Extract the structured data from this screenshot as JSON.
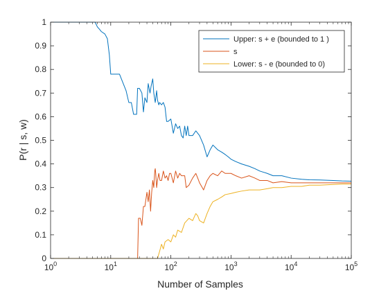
{
  "chart_data": {
    "type": "line",
    "title": "",
    "xlabel": "Number of Samples",
    "ylabel": "P(r | s, w)",
    "xscale": "log",
    "xlim": [
      1,
      100000
    ],
    "ylim": [
      0,
      1
    ],
    "xticks": [
      1,
      10,
      100,
      1000,
      10000,
      100000
    ],
    "xtick_labels": [
      {
        "base": "10",
        "exp": "0"
      },
      {
        "base": "10",
        "exp": "1"
      },
      {
        "base": "10",
        "exp": "2"
      },
      {
        "base": "10",
        "exp": "3"
      },
      {
        "base": "10",
        "exp": "4"
      },
      {
        "base": "10",
        "exp": "5"
      }
    ],
    "yticks": [
      0,
      0.1,
      0.2,
      0.3,
      0.4,
      0.5,
      0.6,
      0.7,
      0.8,
      0.9,
      1
    ],
    "ytick_labels": [
      "0",
      "0.1",
      "0.2",
      "0.3",
      "0.4",
      "0.5",
      "0.6",
      "0.7",
      "0.8",
      "0.9",
      "1"
    ],
    "grid": false,
    "legend": "top-right",
    "series": [
      {
        "name": "Upper: s + e (bounded to 1 )",
        "color": "#0072BD",
        "x": [
          1,
          5.5,
          6,
          6.5,
          7,
          8,
          8.8,
          9.5,
          10,
          14,
          18,
          20,
          22,
          24,
          25,
          27,
          28,
          30,
          33,
          35,
          37,
          40,
          42,
          45,
          47,
          50,
          52,
          55,
          58,
          60,
          63,
          65,
          70,
          75,
          80,
          85,
          90,
          100,
          110,
          120,
          130,
          140,
          150,
          160,
          170,
          180,
          190,
          200,
          230,
          260,
          300,
          350,
          400,
          450,
          500,
          600,
          700,
          800,
          900,
          1000,
          1200,
          1500,
          2000,
          2500,
          3000,
          4000,
          5000,
          7000,
          10000,
          15000,
          20000,
          30000,
          50000,
          70000,
          100000
        ],
        "y": [
          1,
          1,
          0.98,
          0.97,
          0.96,
          0.95,
          0.93,
          0.86,
          0.78,
          0.78,
          0.71,
          0.66,
          0.66,
          0.61,
          0.61,
          0.61,
          0.72,
          0.72,
          0.7,
          0.62,
          0.68,
          0.66,
          0.74,
          0.7,
          0.73,
          0.76,
          0.7,
          0.66,
          0.71,
          0.67,
          0.65,
          0.66,
          0.65,
          0.66,
          0.64,
          0.58,
          0.58,
          0.59,
          0.53,
          0.57,
          0.55,
          0.56,
          0.52,
          0.51,
          0.56,
          0.52,
          0.56,
          0.52,
          0.52,
          0.54,
          0.52,
          0.48,
          0.43,
          0.46,
          0.48,
          0.46,
          0.45,
          0.44,
          0.43,
          0.42,
          0.41,
          0.4,
          0.39,
          0.38,
          0.37,
          0.36,
          0.35,
          0.35,
          0.34,
          0.335,
          0.333,
          0.332,
          0.33,
          0.328,
          0.327
        ]
      },
      {
        "name": "s",
        "color": "#D95319",
        "x": [
          1,
          28,
          29,
          31,
          33,
          35,
          37,
          40,
          42,
          44,
          46,
          48,
          50,
          52,
          54,
          55,
          56,
          58,
          60,
          63,
          66,
          70,
          75,
          80,
          85,
          90,
          95,
          100,
          110,
          120,
          130,
          140,
          150,
          170,
          180,
          200,
          230,
          260,
          280,
          300,
          350,
          400,
          450,
          500,
          600,
          700,
          800,
          1000,
          1200,
          1500,
          2000,
          2500,
          3000,
          4000,
          5000,
          7000,
          10000,
          15000,
          20000,
          30000,
          50000,
          70000,
          100000
        ],
        "y": [
          0,
          0,
          0.17,
          0.17,
          0.14,
          0.22,
          0.22,
          0.28,
          0.24,
          0.29,
          0.2,
          0.28,
          0.33,
          0.3,
          0.37,
          0.38,
          0.36,
          0.3,
          0.33,
          0.36,
          0.33,
          0.33,
          0.37,
          0.34,
          0.35,
          0.33,
          0.36,
          0.36,
          0.32,
          0.37,
          0.34,
          0.36,
          0.35,
          0.35,
          0.3,
          0.31,
          0.34,
          0.36,
          0.34,
          0.32,
          0.29,
          0.33,
          0.35,
          0.36,
          0.35,
          0.37,
          0.36,
          0.36,
          0.35,
          0.34,
          0.35,
          0.34,
          0.33,
          0.33,
          0.32,
          0.325,
          0.32,
          0.32,
          0.32,
          0.32,
          0.32,
          0.32,
          0.32
        ]
      },
      {
        "name": "Lower: s - e (bounded to 0)",
        "color": "#EDB120",
        "x": [
          1,
          60,
          65,
          70,
          75,
          80,
          90,
          100,
          110,
          120,
          130,
          150,
          170,
          200,
          230,
          260,
          280,
          300,
          350,
          400,
          450,
          500,
          600,
          700,
          800,
          1000,
          1200,
          1500,
          2000,
          2500,
          3000,
          4000,
          5000,
          7000,
          10000,
          15000,
          20000,
          30000,
          50000,
          70000,
          100000
        ],
        "y": [
          0,
          0,
          0.03,
          0.06,
          0.04,
          0.07,
          0.08,
          0.07,
          0.1,
          0.09,
          0.12,
          0.11,
          0.15,
          0.17,
          0.16,
          0.19,
          0.18,
          0.16,
          0.15,
          0.19,
          0.22,
          0.24,
          0.25,
          0.26,
          0.27,
          0.275,
          0.28,
          0.285,
          0.29,
          0.29,
          0.29,
          0.295,
          0.3,
          0.3,
          0.305,
          0.305,
          0.31,
          0.31,
          0.313,
          0.315,
          0.315
        ]
      }
    ]
  }
}
